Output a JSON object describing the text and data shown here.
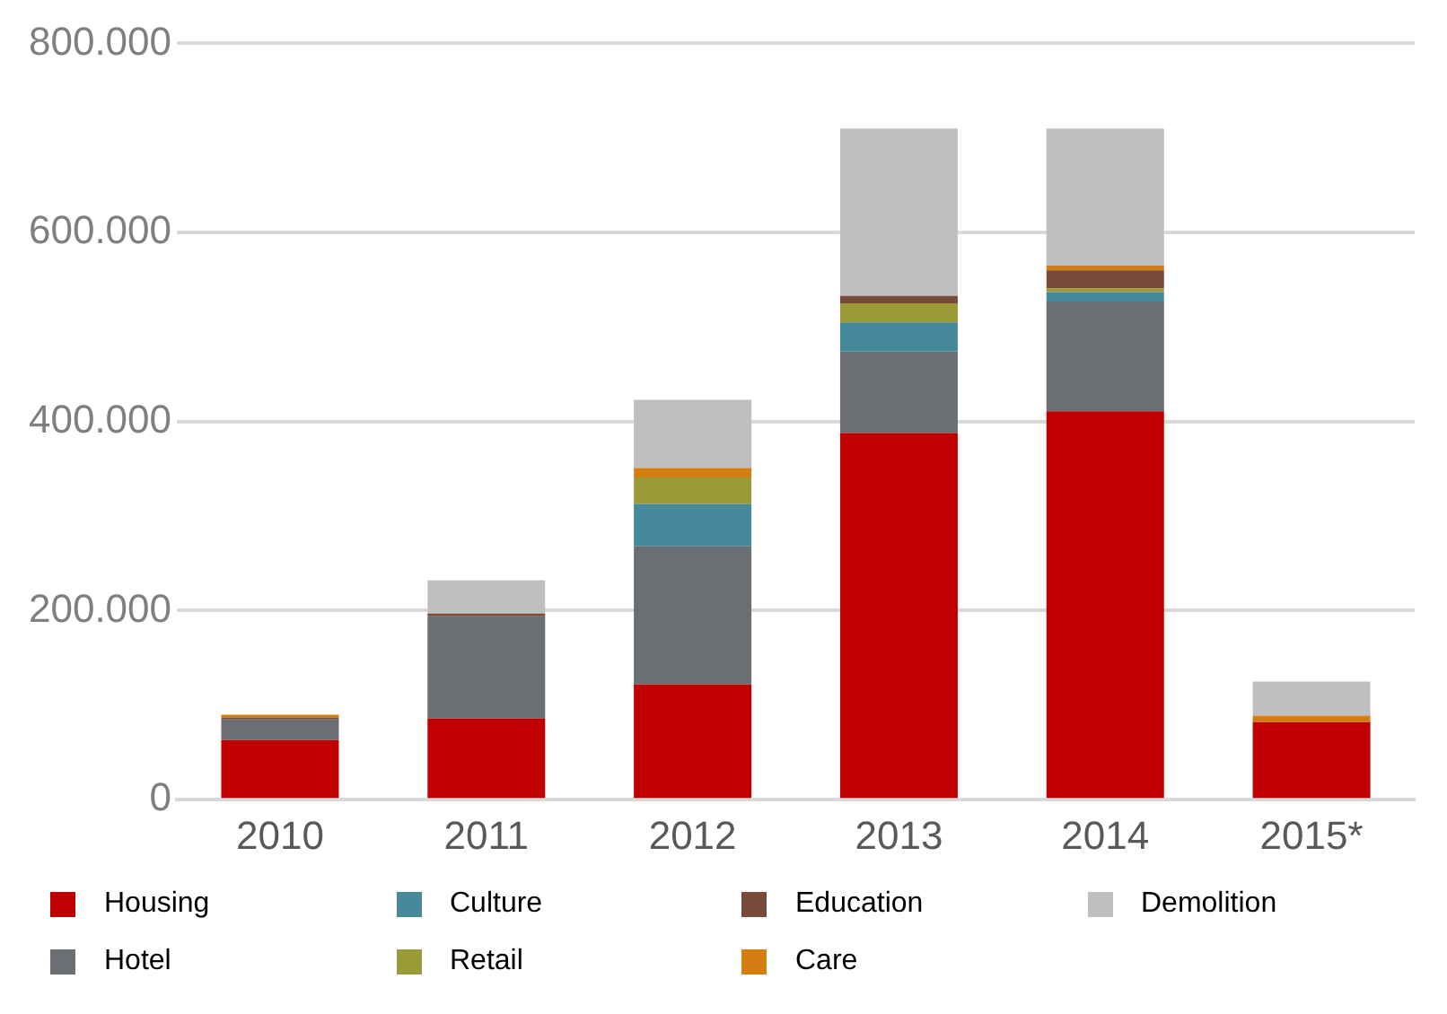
{
  "chart_data": {
    "type": "bar",
    "stacked": true,
    "categories": [
      "2010",
      "2011",
      "2012",
      "2013",
      "2014",
      "2015*"
    ],
    "series": [
      {
        "name": "Housing",
        "color": "#c00000",
        "values": [
          63000,
          86000,
          122000,
          388000,
          411000,
          82000
        ]
      },
      {
        "name": "Hotel",
        "color": "#6b6e72",
        "values": [
          22000,
          108000,
          146000,
          86000,
          116000,
          0
        ]
      },
      {
        "name": "Culture",
        "color": "#46899a",
        "values": [
          0,
          0,
          45000,
          31000,
          10000,
          0
        ]
      },
      {
        "name": "Retail",
        "color": "#9a9a38",
        "values": [
          0,
          0,
          28000,
          20000,
          4000,
          0
        ]
      },
      {
        "name": "Education",
        "color": "#774a3a",
        "values": [
          2000,
          3000,
          0,
          8000,
          19000,
          0
        ]
      },
      {
        "name": "Care",
        "color": "#d47e12",
        "values": [
          3000,
          0,
          10000,
          0,
          5000,
          7000
        ]
      },
      {
        "name": "Demolition",
        "color": "#bfbfbf",
        "values": [
          null,
          35000,
          72000,
          177000,
          145000,
          36000
        ]
      }
    ],
    "ylim": [
      0,
      800000
    ],
    "yticks": [
      0,
      {
        "value": 200000,
        "label": "200.000"
      },
      {
        "value": 400000,
        "label": "400.000"
      },
      {
        "value": 600000,
        "label": "600.000"
      },
      {
        "value": 800000,
        "label": "800.000"
      }
    ],
    "grid": "y",
    "legend": "bottom"
  }
}
